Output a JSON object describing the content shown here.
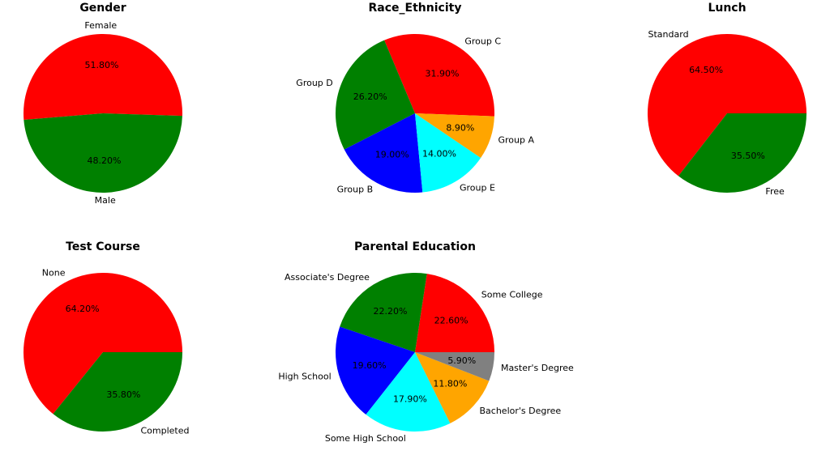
{
  "chart_data": [
    {
      "type": "pie",
      "title": "Gender",
      "slices": [
        {
          "label": "Female",
          "value": 51.8,
          "pct_label": "51.80%",
          "color": "#ff0000"
        },
        {
          "label": "Male",
          "value": 48.2,
          "pct_label": "48.20%",
          "color": "#008000"
        }
      ]
    },
    {
      "type": "pie",
      "title": "Race_Ethnicity",
      "slices": [
        {
          "label": "Group C",
          "value": 31.9,
          "pct_label": "31.90%",
          "color": "#ff0000"
        },
        {
          "label": "Group D",
          "value": 26.2,
          "pct_label": "26.20%",
          "color": "#008000"
        },
        {
          "label": "Group B",
          "value": 19.0,
          "pct_label": "19.00%",
          "color": "#0000ff"
        },
        {
          "label": "Group E",
          "value": 14.0,
          "pct_label": "14.00%",
          "color": "#00ffff"
        },
        {
          "label": "Group A",
          "value": 8.9,
          "pct_label": "8.90%",
          "color": "#ffa500"
        }
      ]
    },
    {
      "type": "pie",
      "title": "Lunch",
      "slices": [
        {
          "label": "Standard",
          "value": 64.5,
          "pct_label": "64.50%",
          "color": "#ff0000"
        },
        {
          "label": "Free",
          "value": 35.5,
          "pct_label": "35.50%",
          "color": "#008000"
        }
      ]
    },
    {
      "type": "pie",
      "title": "Test Course",
      "slices": [
        {
          "label": "None",
          "value": 64.2,
          "pct_label": "64.20%",
          "color": "#ff0000"
        },
        {
          "label": "Completed",
          "value": 35.8,
          "pct_label": "35.80%",
          "color": "#008000"
        }
      ]
    },
    {
      "type": "pie",
      "title": "Parental Education",
      "slices": [
        {
          "label": "Some College",
          "value": 22.6,
          "pct_label": "22.60%",
          "color": "#ff0000"
        },
        {
          "label": "Associate's Degree",
          "value": 22.2,
          "pct_label": "22.20%",
          "color": "#008000"
        },
        {
          "label": "High School",
          "value": 19.6,
          "pct_label": "19.60%",
          "color": "#0000ff"
        },
        {
          "label": "Some High School",
          "value": 17.9,
          "pct_label": "17.90%",
          "color": "#00ffff"
        },
        {
          "label": "Bachelor's Degree",
          "value": 11.8,
          "pct_label": "11.80%",
          "color": "#ffa500"
        },
        {
          "label": "Master's Degree",
          "value": 5.9,
          "pct_label": "5.90%",
          "color": "#808080"
        }
      ]
    }
  ]
}
